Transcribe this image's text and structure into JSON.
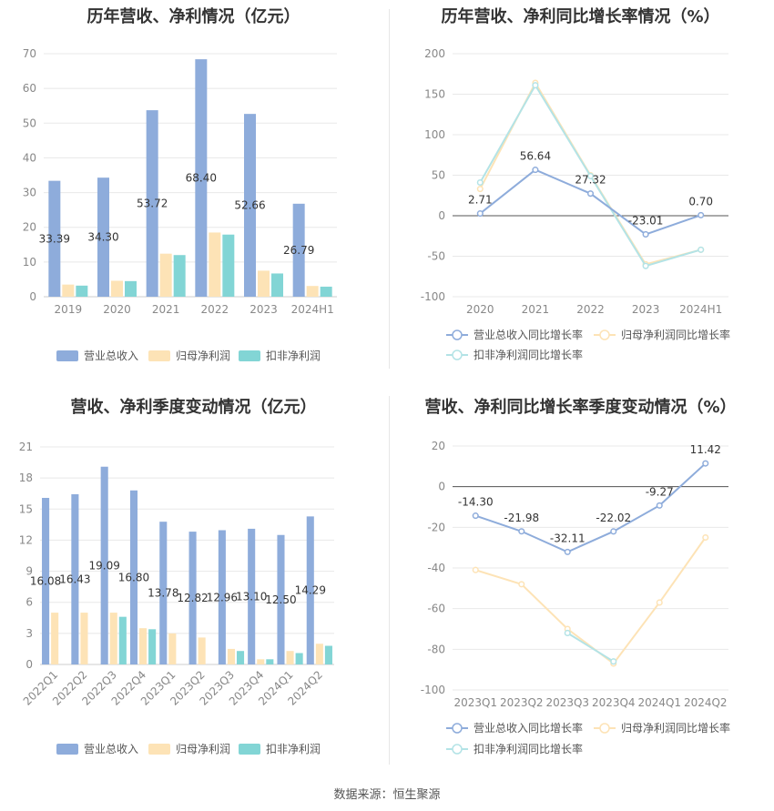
{
  "source": "数据来源：恒生聚源",
  "chart_data": [
    {
      "id": "annual_bar",
      "type": "bar",
      "title": "历年营收、净利情况（亿元）",
      "categories": [
        "2019",
        "2020",
        "2021",
        "2022",
        "2023",
        "2024H1"
      ],
      "yticks": [
        0,
        10,
        20,
        30,
        40,
        50,
        60,
        70
      ],
      "ylim": [
        0,
        70
      ],
      "series": [
        {
          "name": "营业总收入",
          "color": "#8eacdb",
          "values": [
            33.39,
            34.3,
            53.72,
            68.4,
            52.66,
            26.79
          ],
          "labels": [
            "33.39",
            "34.30",
            "53.72",
            "68.40",
            "52.66",
            "26.79"
          ]
        },
        {
          "name": "归母净利润",
          "color": "#fde3b6",
          "values": [
            3.5,
            4.6,
            12.4,
            18.5,
            7.5,
            3.1
          ]
        },
        {
          "name": "扣非净利润",
          "color": "#82d5d5",
          "values": [
            3.2,
            4.5,
            12.0,
            17.9,
            6.7,
            2.9
          ]
        }
      ],
      "legend_position": "bottom"
    },
    {
      "id": "annual_line",
      "type": "line",
      "title": "历年营收、净利同比增长率情况（%）",
      "categories": [
        "2020",
        "2021",
        "2022",
        "2023",
        "2024H1"
      ],
      "yticks": [
        -100,
        -50,
        0,
        50,
        100,
        150,
        200
      ],
      "ylim": [
        -100,
        200
      ],
      "series": [
        {
          "name": "营业总收入同比增长率",
          "color": "#8eacdb",
          "values": [
            2.71,
            56.64,
            27.32,
            -23.01,
            0.7
          ],
          "labels": [
            "2.71",
            "56.64",
            "27.32",
            "-23.01",
            "0.70"
          ]
        },
        {
          "name": "归母净利润同比增长率",
          "color": "#fde3b6",
          "values": [
            33,
            164,
            50,
            -60,
            -42
          ]
        },
        {
          "name": "扣非净利润同比增长率",
          "color": "#b3e3e6",
          "values": [
            41,
            161,
            49,
            -62,
            -42
          ]
        }
      ],
      "legend_position": "bottom"
    },
    {
      "id": "quarter_bar",
      "type": "bar",
      "title": "营收、净利季度变动情况（亿元）",
      "categories": [
        "2022Q1",
        "2022Q2",
        "2022Q3",
        "2022Q4",
        "2023Q1",
        "2023Q2",
        "2023Q3",
        "2023Q4",
        "2024Q1",
        "2024Q2"
      ],
      "yticks": [
        0,
        3,
        6,
        9,
        12,
        15,
        18,
        21
      ],
      "ylim": [
        0,
        21
      ],
      "series": [
        {
          "name": "营业总收入",
          "color": "#8eacdb",
          "values": [
            16.08,
            16.43,
            19.09,
            16.8,
            13.78,
            12.82,
            12.96,
            13.1,
            12.5,
            14.29
          ],
          "labels": [
            "16.08",
            "16.43",
            "19.09",
            "16.80",
            "13.78",
            "12.82",
            "12.96",
            "13.10",
            "12.50",
            "14.29"
          ]
        },
        {
          "name": "归母净利润",
          "color": "#fde3b6",
          "values": [
            5.0,
            5.0,
            5.0,
            3.5,
            3.0,
            2.6,
            1.5,
            0.5,
            1.3,
            2.0
          ]
        },
        {
          "name": "扣非净利润",
          "color": "#82d5d5",
          "values": [
            null,
            null,
            4.6,
            3.4,
            null,
            null,
            1.3,
            0.5,
            1.1,
            1.8
          ]
        }
      ],
      "legend_position": "bottom"
    },
    {
      "id": "quarter_line",
      "type": "line",
      "title": "营收、净利同比增长率季度变动情况（%）",
      "categories": [
        "2023Q1",
        "2023Q2",
        "2023Q3",
        "2023Q4",
        "2024Q1",
        "2024Q2"
      ],
      "yticks": [
        -100,
        -80,
        -60,
        -40,
        -20,
        0,
        20
      ],
      "ylim": [
        -100,
        20
      ],
      "series": [
        {
          "name": "营业总收入同比增长率",
          "color": "#8eacdb",
          "values": [
            -14.3,
            -21.98,
            -32.11,
            -22.02,
            -9.27,
            11.42
          ],
          "labels": [
            "-14.30",
            "-21.98",
            "-32.11",
            "-22.02",
            "-9.27",
            "11.42"
          ]
        },
        {
          "name": "归母净利润同比增长率",
          "color": "#fde3b6",
          "values": [
            -41,
            -48,
            -70,
            -87,
            -57,
            -25
          ]
        },
        {
          "name": "扣非净利润同比增长率",
          "color": "#b3e3e6",
          "values": [
            null,
            null,
            -72,
            -86,
            null,
            null
          ]
        }
      ],
      "legend_position": "bottom"
    }
  ]
}
